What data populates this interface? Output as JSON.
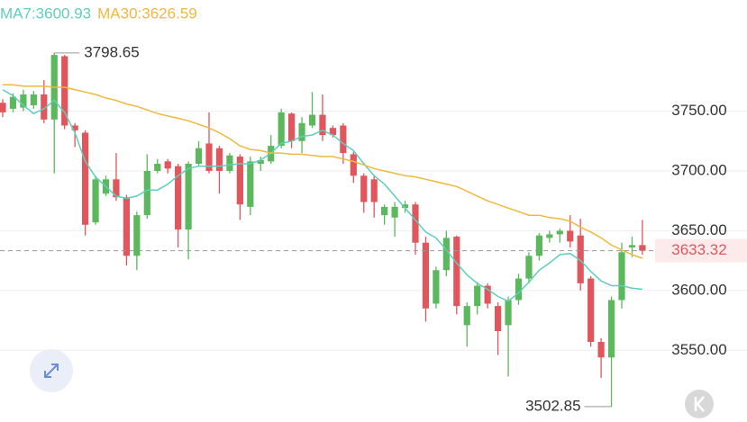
{
  "chart_data": {
    "type": "candlestick",
    "series": [
      {
        "name": "MA7:3600.93",
        "color": "#5ccfbd",
        "values": [
          3768,
          3763,
          3755,
          3748,
          3752,
          3759,
          3749,
          3732,
          3708,
          3695,
          3687,
          3679,
          3677,
          3679,
          3684,
          3684,
          3689,
          3696,
          3702,
          3704,
          3704,
          3704,
          3705,
          3706,
          3706,
          3709,
          3715,
          3723,
          3725,
          3729,
          3730,
          3734,
          3730,
          3723,
          3717,
          3706,
          3696,
          3689,
          3679,
          3669,
          3659,
          3649,
          3644,
          3634,
          3623,
          3613,
          3606,
          3601,
          3595,
          3591,
          3598,
          3607,
          3617,
          3623,
          3630,
          3631,
          3625,
          3616,
          3608,
          3604,
          3604,
          3602,
          3601
        ]
      },
      {
        "name": "MA30:3626.59",
        "color": "#efb93c",
        "values": [
          3772,
          3772,
          3771,
          3771,
          3771,
          3770,
          3770,
          3768,
          3766,
          3764,
          3761,
          3759,
          3756,
          3754,
          3751,
          3748,
          3746,
          3744,
          3742,
          3739,
          3736,
          3732,
          3727,
          3721,
          3718,
          3717,
          3715,
          3715,
          3714,
          3714,
          3713,
          3712,
          3712,
          3710,
          3708,
          3705,
          3702,
          3700,
          3698,
          3696,
          3695,
          3693,
          3691,
          3689,
          3687,
          3683,
          3679,
          3675,
          3672,
          3669,
          3666,
          3663,
          3663,
          3661,
          3660,
          3658,
          3653,
          3649,
          3644,
          3638,
          3634,
          3630,
          3627
        ]
      }
    ],
    "open": [
      3757,
      3752,
      3753,
      3755,
      3764,
      3743,
      3796,
      3738,
      3732,
      3657,
      3681,
      3693,
      3678,
      3629,
      3663,
      3700,
      3708,
      3704,
      3651,
      3706,
      3723,
      3719,
      3700,
      3712,
      3670,
      3706,
      3708,
      3721,
      3748,
      3725,
      3738,
      3747,
      3736,
      3738,
      3714,
      3696,
      3693,
      3663,
      3661,
      3669,
      3672,
      3640,
      3589,
      3617,
      3645,
      3571,
      3587,
      3604,
      3587,
      3571,
      3592,
      3610,
      3629,
      3644,
      3647,
      3650,
      3646,
      3610,
      3557,
      3544,
      3592,
      3636,
      3638
    ],
    "high": [
      3760,
      3765,
      3768,
      3767,
      3776,
      3798.65,
      3797,
      3740,
      3734,
      3696,
      3696,
      3715,
      3680,
      3666,
      3714,
      3710,
      3710,
      3706,
      3708,
      3725,
      3749,
      3721,
      3715,
      3714,
      3712,
      3712,
      3730,
      3752,
      3749,
      3745,
      3766,
      3764,
      3738,
      3740,
      3716,
      3698,
      3696,
      3672,
      3674,
      3675,
      3674,
      3645,
      3620,
      3650,
      3646,
      3590,
      3607,
      3606,
      3590,
      3595,
      3614,
      3632,
      3648,
      3650,
      3652,
      3663,
      3660,
      3612,
      3560,
      3595,
      3640,
      3645,
      3659
    ],
    "low": [
      3745,
      3749,
      3750,
      3752,
      3740,
      3698,
      3735,
      3720,
      3646,
      3655,
      3679,
      3675,
      3621,
      3617,
      3660,
      3698,
      3698,
      3636,
      3626,
      3704,
      3698,
      3681,
      3698,
      3659,
      3663,
      3700,
      3706,
      3719,
      3719,
      3715,
      3736,
      3725,
      3728,
      3706,
      3690,
      3665,
      3661,
      3655,
      3645,
      3665,
      3630,
      3574,
      3585,
      3612,
      3580,
      3553,
      3580,
      3585,
      3546,
      3528,
      3588,
      3606,
      3625,
      3640,
      3640,
      3636,
      3600,
      3553,
      3527,
      3502.85,
      3585,
      3628,
      3630
    ],
    "close": [
      3749,
      3762,
      3764,
      3764,
      3743,
      3797,
      3738,
      3734,
      3655,
      3693,
      3693,
      3678,
      3629,
      3663,
      3700,
      3706,
      3702,
      3651,
      3706,
      3719,
      3700,
      3700,
      3713,
      3672,
      3708,
      3709,
      3721,
      3749,
      3725,
      3740,
      3747,
      3730,
      3730,
      3715,
      3696,
      3674,
      3674,
      3670,
      3670,
      3672,
      3640,
      3585,
      3617,
      3644,
      3587,
      3587,
      3604,
      3589,
      3566,
      3592,
      3610,
      3629,
      3646,
      3647,
      3650,
      3641,
      3606,
      3557,
      3544,
      3592,
      3632,
      3638,
      3633.32
    ],
    "up_color": "#5cb85c",
    "down_color": "#e0565c",
    "ylim": [
      3490,
      3843
    ],
    "yticks": [
      {
        "value": 3550,
        "label": "3550.00"
      },
      {
        "value": 3600,
        "label": "3600.00"
      },
      {
        "value": 3650,
        "label": "3650.00"
      },
      {
        "value": 3700,
        "label": "3700.00"
      },
      {
        "value": 3750,
        "label": "3750.00"
      }
    ],
    "grid": true
  }
}
